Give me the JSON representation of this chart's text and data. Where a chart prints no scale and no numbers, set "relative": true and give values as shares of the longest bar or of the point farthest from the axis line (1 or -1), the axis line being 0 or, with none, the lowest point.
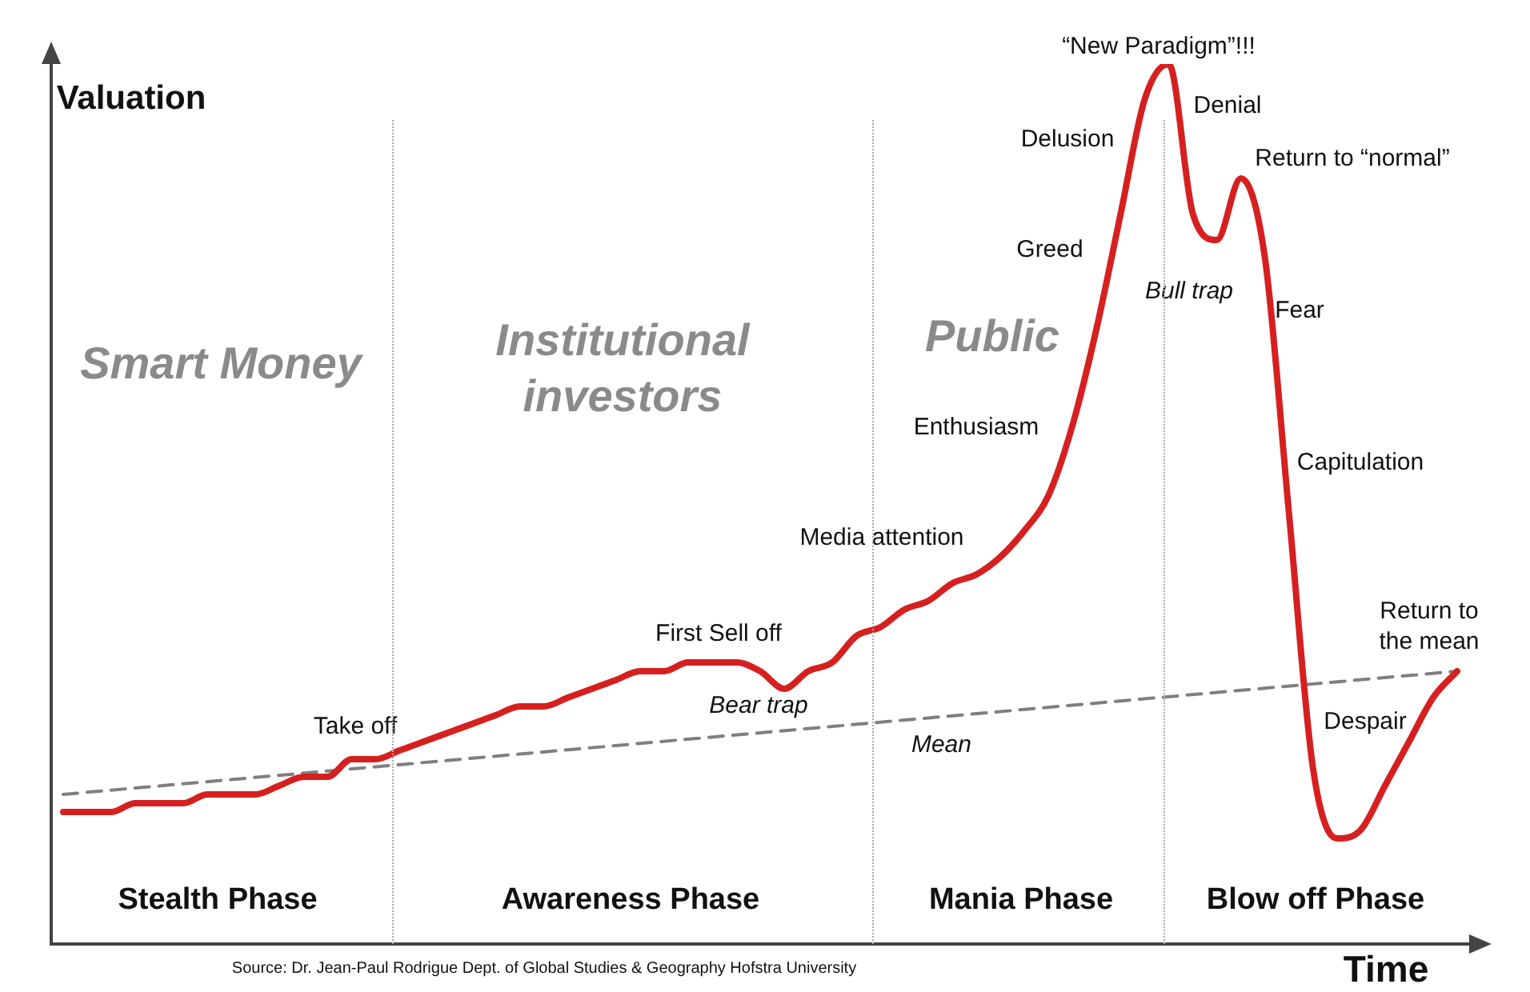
{
  "chart_data": {
    "type": "line",
    "relative": true,
    "tick_labels": false,
    "marker": "none",
    "xlabel": "Time",
    "ylabel": "Valuation",
    "categories": [
      null,
      null,
      null,
      null,
      null,
      null,
      null,
      null,
      null,
      null,
      null,
      null,
      null,
      null,
      null,
      null,
      null,
      null,
      null,
      null,
      null,
      null,
      null,
      null,
      null,
      null,
      null,
      null,
      null,
      null,
      null,
      null,
      null,
      null,
      null,
      null,
      null,
      null,
      null,
      null,
      null,
      null,
      null,
      null,
      null,
      null,
      null,
      null,
      null,
      null,
      null,
      null,
      null,
      null,
      null,
      null,
      null,
      null,
      null
    ],
    "series": [
      {
        "color": "#d62020",
        "values": [
          0.15,
          0.15,
          0.15,
          0.16,
          0.16,
          0.16,
          0.17,
          0.17,
          0.17,
          0.18,
          0.19,
          0.19,
          0.21,
          0.21,
          0.22,
          0.23,
          0.24,
          0.25,
          0.26,
          0.27,
          0.27,
          0.28,
          0.29,
          0.3,
          0.31,
          0.31,
          0.32,
          0.32,
          0.32,
          0.31,
          0.29,
          0.31,
          0.32,
          0.35,
          0.36,
          0.38,
          0.39,
          0.41,
          0.42,
          0.44,
          0.47,
          0.51,
          0.59,
          0.7,
          0.83,
          0.96,
          1,
          0.83,
          0.8,
          0.87,
          0.78,
          0.49,
          0.2,
          0.12,
          0.13,
          0.18,
          0.23,
          0.28,
          0.31
        ]
      },
      {
        "name": "Mean",
        "color": "#7f7f7f",
        "line_style": "dashed",
        "values": [
          0.17,
          null,
          null,
          null,
          null,
          null,
          null,
          null,
          null,
          null,
          null,
          null,
          null,
          null,
          null,
          null,
          null,
          null,
          null,
          null,
          null,
          null,
          null,
          null,
          null,
          null,
          null,
          null,
          null,
          null,
          null,
          null,
          null,
          null,
          null,
          null,
          null,
          null,
          null,
          null,
          null,
          null,
          null,
          null,
          null,
          null,
          null,
          null,
          null,
          null,
          null,
          null,
          null,
          null,
          null,
          null,
          null,
          null,
          0.31
        ]
      }
    ],
    "annotations": [
      "Take off",
      "First Sell off",
      "Bear trap",
      "Media attention",
      "Enthusiasm",
      "Greed",
      "Delusion",
      "“New Paradigm”!!!",
      "Denial",
      "Return to “normal”",
      "Bull trap",
      "Fear",
      "Capitulation",
      "Return to the mean",
      "Despair",
      "Smart Money",
      "Institutional investors",
      "Public",
      "Stealth Phase",
      "Awareness Phase",
      "Mania Phase",
      "Blow off Phase",
      "Source: Dr. Jean-Paul Rodrigue Dept. of Global Studies & Geography Hofstra University"
    ]
  }
}
